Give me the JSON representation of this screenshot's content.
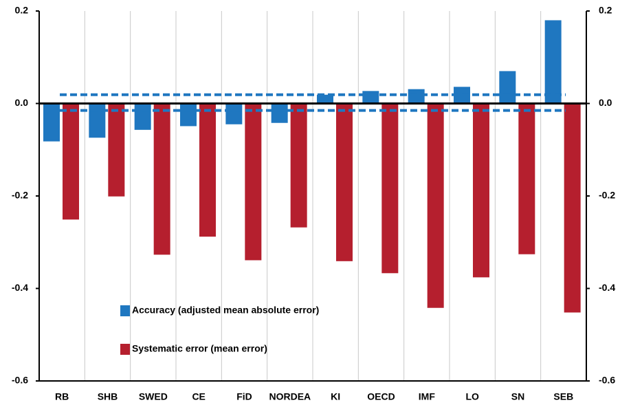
{
  "chart_data": {
    "type": "bar",
    "categories": [
      "RB",
      "SHB",
      "SWED",
      "CE",
      "FiD",
      "NORDEA",
      "KI",
      "OECD",
      "IMF",
      "LO",
      "SN",
      "SEB"
    ],
    "series": [
      {
        "name": "Accuracy (adjusted mean absolute error)",
        "color": "#1f77c0",
        "values": [
          -0.082,
          -0.074,
          -0.057,
          -0.049,
          -0.045,
          -0.042,
          0.019,
          0.027,
          0.031,
          0.036,
          0.07,
          0.18
        ]
      },
      {
        "name": "Systematic error (mean error)",
        "color": "#b51f2e",
        "values": [
          -0.251,
          -0.201,
          -0.327,
          -0.288,
          -0.339,
          -0.268,
          -0.341,
          -0.367,
          -0.442,
          -0.376,
          -0.326,
          -0.452
        ]
      }
    ],
    "reference_lines": {
      "color": "#1f77c0",
      "values": [
        0.019,
        -0.015
      ]
    },
    "ylim": [
      -0.6,
      0.2
    ],
    "yticks": [
      -0.6,
      -0.4,
      -0.2,
      {
        "value": 0,
        "label": "0.0"
      },
      0.2
    ],
    "y2lim": [
      -0.6,
      0.2
    ],
    "y2ticks": [
      -0.6,
      -0.4,
      -0.2,
      {
        "value": 0,
        "label": "0.0"
      },
      0.2
    ],
    "grid": true,
    "legend": "lower left"
  }
}
